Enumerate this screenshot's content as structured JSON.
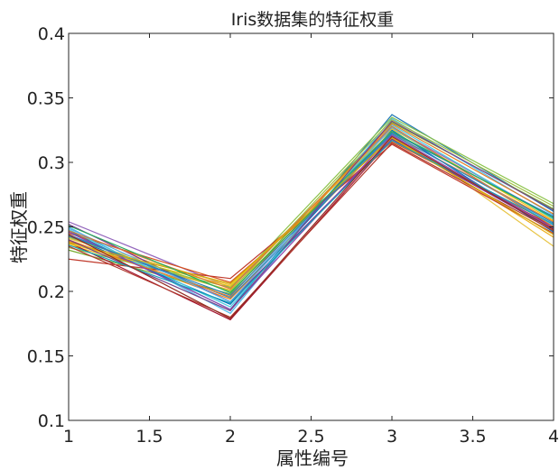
{
  "chart_data": {
    "type": "line",
    "title": "Iris数据集的特征权重",
    "xlabel": "属性编号",
    "ylabel": "特征权重",
    "x": [
      1,
      2,
      3,
      4
    ],
    "xlim": [
      1,
      4
    ],
    "ylim": [
      0.1,
      0.4
    ],
    "xticks": [
      "1",
      "1.5",
      "2",
      "2.5",
      "3",
      "3.5",
      "4"
    ],
    "yticks": [
      "0.1",
      "0.15",
      "0.2",
      "0.25",
      "0.3",
      "0.35",
      "0.4"
    ],
    "grid": false,
    "legend": "none",
    "series": [
      {
        "values": [
          0.247,
          0.186,
          0.337,
          0.262
        ],
        "color": "#1f77b4"
      },
      {
        "values": [
          0.24,
          0.194,
          0.322,
          0.254
        ],
        "color": "#ff7f0e"
      },
      {
        "values": [
          0.236,
          0.201,
          0.32,
          0.242
        ],
        "color": "#edb120"
      },
      {
        "values": [
          0.254,
          0.203,
          0.327,
          0.257
        ],
        "color": "#9467bd"
      },
      {
        "values": [
          0.232,
          0.198,
          0.331,
          0.264
        ],
        "color": "#77ac30"
      },
      {
        "values": [
          0.25,
          0.183,
          0.334,
          0.259
        ],
        "color": "#4dbeee"
      },
      {
        "values": [
          0.238,
          0.178,
          0.318,
          0.25
        ],
        "color": "#a2142f"
      },
      {
        "values": [
          0.243,
          0.19,
          0.325,
          0.246
        ],
        "color": "#0072bd"
      },
      {
        "values": [
          0.245,
          0.207,
          0.316,
          0.252
        ],
        "color": "#d95319"
      },
      {
        "values": [
          0.241,
          0.205,
          0.324,
          0.235
        ],
        "color": "#e8c547"
      },
      {
        "values": [
          0.252,
          0.192,
          0.318,
          0.248
        ],
        "color": "#7e2f8e"
      },
      {
        "values": [
          0.234,
          0.203,
          0.335,
          0.268
        ],
        "color": "#8bc34a"
      },
      {
        "values": [
          0.248,
          0.188,
          0.329,
          0.256
        ],
        "color": "#48c9e0"
      },
      {
        "values": [
          0.225,
          0.21,
          0.314,
          0.245
        ],
        "color": "#c0392b"
      },
      {
        "values": [
          0.244,
          0.195,
          0.322,
          0.253
        ],
        "color": "#2e86c1"
      },
      {
        "values": [
          0.239,
          0.196,
          0.33,
          0.26
        ],
        "color": "#e67e22"
      },
      {
        "values": [
          0.237,
          0.204,
          0.326,
          0.255
        ],
        "color": "#f1c40f"
      },
      {
        "values": [
          0.246,
          0.186,
          0.321,
          0.249
        ],
        "color": "#8e44ad"
      },
      {
        "values": [
          0.242,
          0.2,
          0.333,
          0.266
        ],
        "color": "#a0c040"
      },
      {
        "values": [
          0.249,
          0.192,
          0.327,
          0.251
        ],
        "color": "#5dade2"
      },
      {
        "values": [
          0.235,
          0.18,
          0.315,
          0.247
        ],
        "color": "#b03a2e"
      },
      {
        "values": [
          0.243,
          0.197,
          0.323,
          0.258
        ],
        "color": "#2980b9"
      },
      {
        "values": [
          0.247,
          0.202,
          0.328,
          0.25
        ],
        "color": "#dc7633"
      },
      {
        "values": [
          0.238,
          0.206,
          0.319,
          0.244
        ],
        "color": "#d4ac0d"
      },
      {
        "values": [
          0.24,
          0.185,
          0.332,
          0.263
        ],
        "color": "#76448a"
      },
      {
        "values": [
          0.251,
          0.199,
          0.324,
          0.257
        ],
        "color": "#27ae60"
      },
      {
        "values": [
          0.236,
          0.191,
          0.317,
          0.252
        ],
        "color": "#17a2b8"
      },
      {
        "values": [
          0.244,
          0.179,
          0.32,
          0.248
        ],
        "color": "#922b21"
      }
    ]
  }
}
